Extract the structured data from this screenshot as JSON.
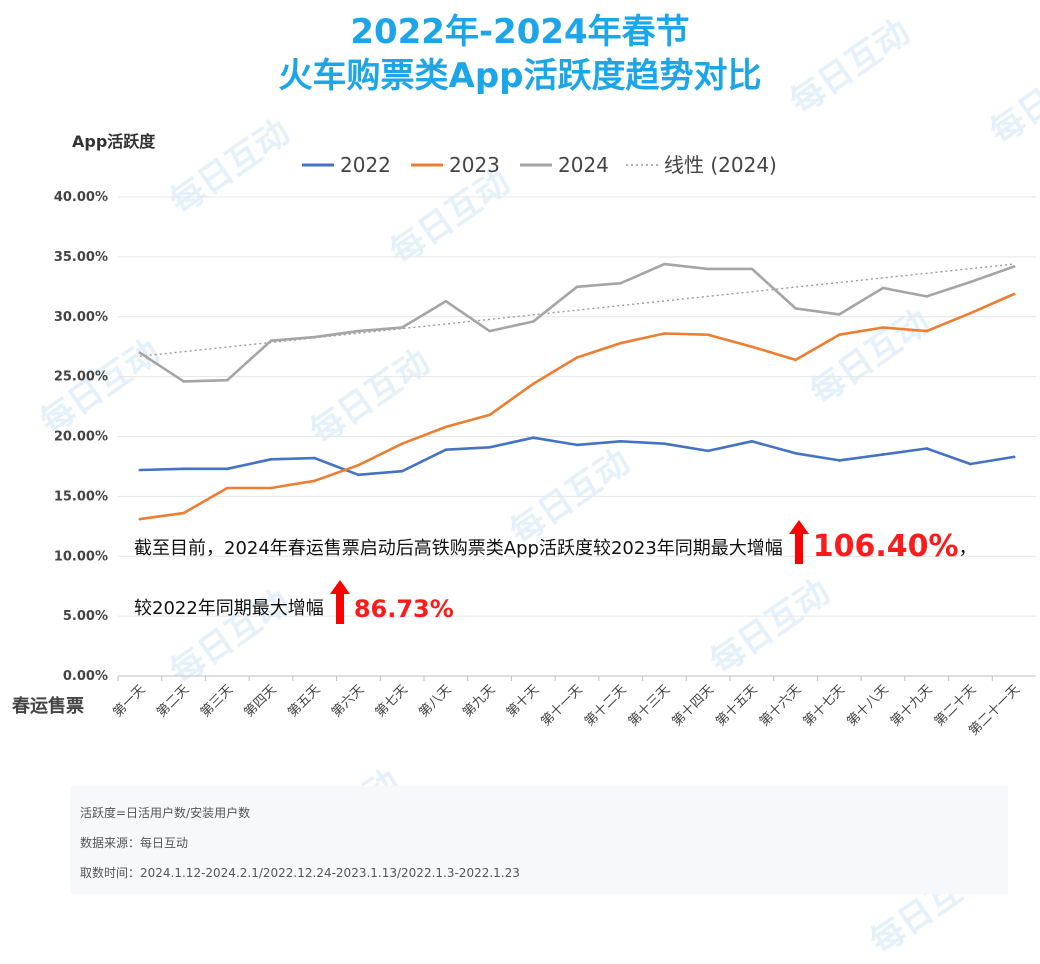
{
  "title_line1": "2022年-2024年春节",
  "title_line2": "火车购票类App活跃度趋势对比",
  "watermark": "每日互动",
  "chart_data": {
    "type": "line",
    "ylabel": "App活跃度",
    "xlabel": "春运售票",
    "categories": [
      "第一天",
      "第二天",
      "第三天",
      "第四天",
      "第五天",
      "第六天",
      "第七天",
      "第八天",
      "第九天",
      "第十天",
      "第十一天",
      "第十二天",
      "第十三天",
      "第十四天",
      "第十五天",
      "第十六天",
      "第十七天",
      "第十八天",
      "第十九天",
      "第二十天",
      "第二十一天"
    ],
    "ylim": [
      0,
      40
    ],
    "yticks": [
      "0.00%",
      "5.00%",
      "10.00%",
      "15.00%",
      "20.00%",
      "25.00%",
      "30.00%",
      "35.00%",
      "40.00%"
    ],
    "grid": true,
    "legend_position": "top",
    "series": [
      {
        "name": "2022",
        "color": "#4472c4",
        "values": [
          17.2,
          17.3,
          17.3,
          18.1,
          18.2,
          16.8,
          17.1,
          18.9,
          19.1,
          19.9,
          19.3,
          19.6,
          19.4,
          18.8,
          19.6,
          18.6,
          18.0,
          18.5,
          19.0,
          17.7,
          18.3
        ]
      },
      {
        "name": "2023",
        "color": "#ed7d31",
        "values": [
          13.1,
          13.6,
          15.7,
          15.7,
          16.3,
          17.6,
          19.4,
          20.8,
          21.8,
          24.4,
          26.6,
          27.8,
          28.6,
          28.5,
          27.5,
          26.4,
          28.5,
          29.1,
          28.8,
          30.3,
          31.9
        ]
      },
      {
        "name": "2024",
        "color": "#a5a5a5",
        "values": [
          27.0,
          24.6,
          24.7,
          28.0,
          28.3,
          28.8,
          29.1,
          31.3,
          28.8,
          29.6,
          32.5,
          32.8,
          34.4,
          34.0,
          34.0,
          30.7,
          30.2,
          32.4,
          31.7,
          32.9,
          34.2
        ]
      }
    ],
    "trendline": {
      "name": "线性 (2024)",
      "color": "#a5a5a5",
      "start": 26.7,
      "end": 34.4
    }
  },
  "annotation": {
    "line1": "截至目前，2024年春运售票启动后高铁购票类App活跃度较2023年同期最大增幅",
    "value1": "106.40%",
    "tail1": "，",
    "line2": "较2022年同期最大增幅",
    "value2": "86.73%",
    "arrow_color": "#ff0000"
  },
  "footer": {
    "line1": "活跃度=日活用户数/安装用户数",
    "line2": "数据来源：每日互动",
    "line3": "取数时间：2024.1.12-2024.2.1/2022.12.24-2023.1.13/2022.1.3-2022.1.23"
  }
}
